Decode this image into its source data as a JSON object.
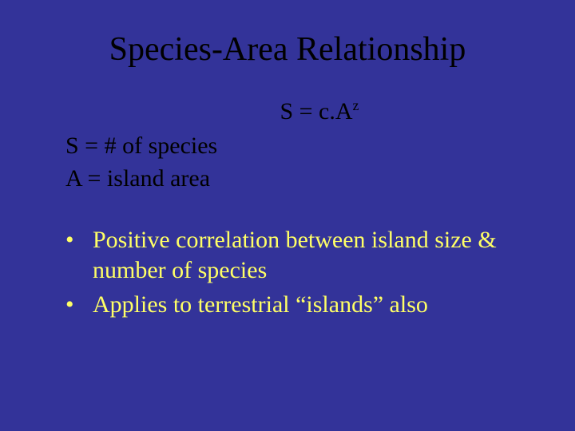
{
  "slide": {
    "background_color": "#333399",
    "text_color_body": "#000000",
    "text_color_bullets": "#ffff66",
    "font_family": "Times New Roman",
    "title": "Species-Area Relationship",
    "title_fontsize": 42,
    "equation": {
      "prefix": "S = c.A",
      "exponent": "z",
      "fontsize": 30
    },
    "definitions": [
      "S = # of species",
      "A = island area"
    ],
    "definition_fontsize": 30,
    "bullets": [
      "Positive correlation between island size & number of species",
      "Applies to terrestrial “islands” also"
    ],
    "bullet_fontsize": 30
  }
}
